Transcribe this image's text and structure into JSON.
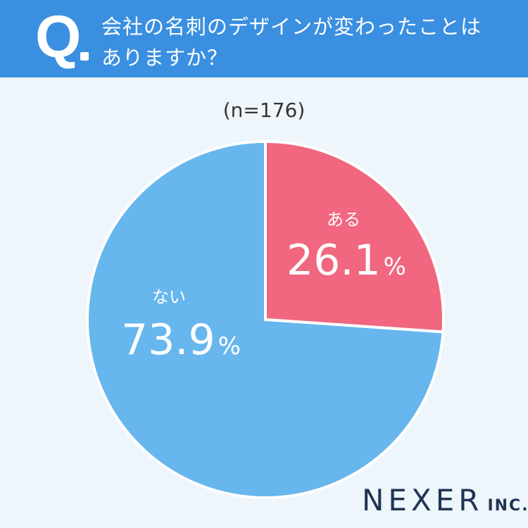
{
  "header": {
    "q_mark": "Q",
    "question_line1": "会社の名刺のデザインが変わったことは",
    "question_line2": "ありますか？"
  },
  "sample_size": "(n=176)",
  "chart_data": {
    "type": "pie",
    "title": "",
    "slices": [
      {
        "label": "ある",
        "value": 26.1,
        "display": "26.1",
        "unit": "%",
        "color": "#f0677f"
      },
      {
        "label": "ない",
        "value": 73.9,
        "display": "73.9",
        "unit": "%",
        "color": "#67b6ee"
      }
    ],
    "start": "12 o'clock",
    "direction": "clockwise"
  },
  "logo": {
    "main": "NEXER",
    "suffix": "INC."
  }
}
